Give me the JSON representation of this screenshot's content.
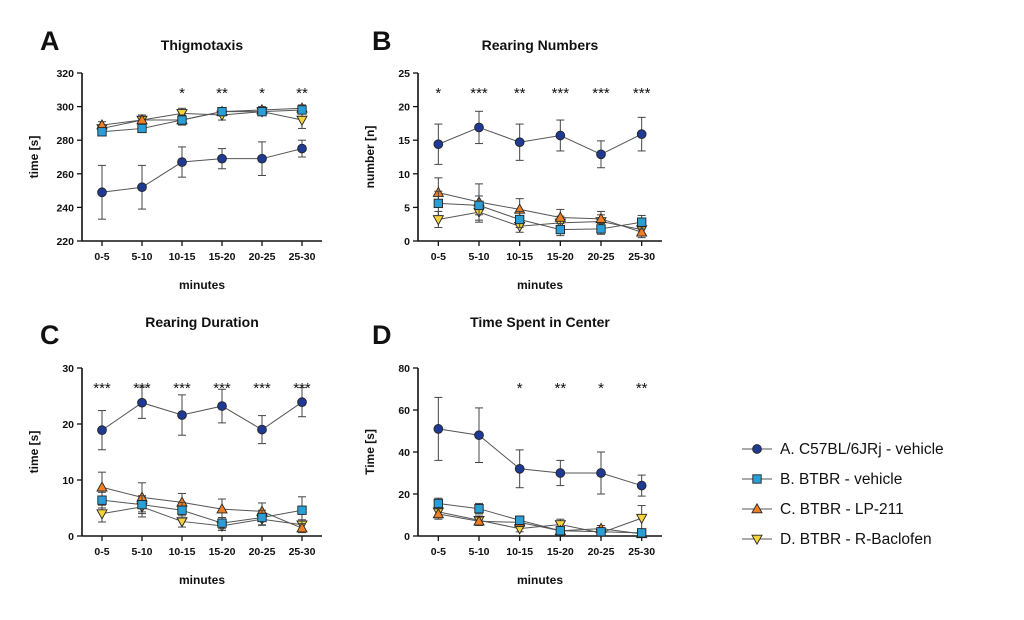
{
  "legend": [
    {
      "name": "A. C57BL/6JRj - vehicle",
      "color": "#1f3a93",
      "marker": "circle"
    },
    {
      "name": "B. BTBR - vehicle",
      "color": "#2a9fd6",
      "marker": "square"
    },
    {
      "name": "C. BTBR - LP-211",
      "color": "#f07f22",
      "marker": "triangle-up"
    },
    {
      "name": "D. BTBR - R-Baclofen",
      "color": "#f5d33a",
      "marker": "triangle-down"
    }
  ],
  "chart_data": [
    {
      "panel": "A",
      "type": "line",
      "title": "Thigmotaxis",
      "xlabel": "minutes",
      "ylabel": "time [s]",
      "categories": [
        "0-5",
        "5-10",
        "10-15",
        "15-20",
        "20-25",
        "25-30"
      ],
      "ylim": [
        220,
        320
      ],
      "yticks": [
        220,
        240,
        260,
        280,
        300,
        320
      ],
      "significance": [
        "",
        "",
        "*",
        "**",
        "*",
        "**"
      ],
      "series": [
        {
          "name": "A. C57BL/6JRj - vehicle",
          "values": [
            249,
            252,
            267,
            269,
            269,
            275
          ],
          "errors": [
            16,
            13,
            9,
            6,
            10,
            5
          ]
        },
        {
          "name": "B. BTBR - vehicle",
          "values": [
            285,
            287,
            292,
            297,
            297,
            298
          ],
          "errors": [
            2,
            2,
            3,
            2,
            2,
            2
          ]
        },
        {
          "name": "C. BTBR - LP-211",
          "values": [
            289,
            292,
            292,
            297,
            298,
            299
          ],
          "errors": [
            2,
            2,
            2,
            2,
            2,
            2
          ]
        },
        {
          "name": "D. BTBR - R-Baclofen",
          "values": [
            287,
            292,
            296,
            295,
            297,
            292
          ],
          "errors": [
            2,
            3,
            3,
            3,
            2,
            5
          ]
        }
      ]
    },
    {
      "panel": "B",
      "type": "line",
      "title": "Rearing Numbers",
      "xlabel": "minutes",
      "ylabel": "number [n]",
      "categories": [
        "0-5",
        "5-10",
        "10-15",
        "15-20",
        "20-25",
        "25-30"
      ],
      "ylim": [
        0,
        25
      ],
      "yticks": [
        0,
        5,
        10,
        15,
        20,
        25
      ],
      "significance": [
        "*",
        "***",
        "**",
        "***",
        "***",
        "***"
      ],
      "series": [
        {
          "name": "A. C57BL/6JRj - vehicle",
          "values": [
            14.4,
            16.9,
            14.7,
            15.7,
            12.9,
            15.9
          ],
          "errors": [
            3.0,
            2.4,
            2.7,
            2.3,
            2.0,
            2.5
          ]
        },
        {
          "name": "B. BTBR - vehicle",
          "values": [
            5.6,
            5.3,
            3.2,
            1.7,
            1.8,
            2.8
          ],
          "errors": [
            1.8,
            1.4,
            1.2,
            0.9,
            0.8,
            1.0
          ]
        },
        {
          "name": "C. BTBR - LP-211",
          "values": [
            7.2,
            5.8,
            4.7,
            3.5,
            3.3,
            1.3
          ],
          "errors": [
            2.2,
            2.7,
            1.6,
            1.2,
            1.1,
            0.8
          ]
        },
        {
          "name": "D. BTBR - R-Baclofen",
          "values": [
            3.2,
            4.3,
            2.2,
            2.7,
            2.9,
            1.7
          ],
          "errors": [
            1.2,
            1.5,
            0.9,
            1.0,
            1.0,
            0.7
          ]
        }
      ]
    },
    {
      "panel": "C",
      "type": "line",
      "title": "Rearing Duration",
      "xlabel": "minutes",
      "ylabel": "time [s]",
      "categories": [
        "0-5",
        "5-10",
        "10-15",
        "15-20",
        "20-25",
        "25-30"
      ],
      "ylim": [
        0,
        30
      ],
      "yticks": [
        0,
        10,
        20,
        30
      ],
      "significance": [
        "***",
        "***",
        "***",
        "***",
        "***",
        "***"
      ],
      "series": [
        {
          "name": "A. C57BL/6JRj - vehicle",
          "values": [
            18.9,
            23.8,
            21.6,
            23.2,
            19.0,
            23.9
          ],
          "errors": [
            3.5,
            2.8,
            3.6,
            3.0,
            2.5,
            2.6
          ]
        },
        {
          "name": "B. BTBR - vehicle",
          "values": [
            6.4,
            5.6,
            4.6,
            2.3,
            3.3,
            4.6
          ],
          "errors": [
            1.4,
            1.6,
            1.4,
            1.0,
            1.3,
            2.4
          ]
        },
        {
          "name": "C. BTBR - LP-211",
          "values": [
            8.7,
            6.9,
            6.0,
            4.8,
            4.4,
            1.4
          ],
          "errors": [
            2.7,
            2.6,
            1.6,
            1.8,
            1.5,
            0.8
          ]
        },
        {
          "name": "D. BTBR - R-Baclofen",
          "values": [
            4.0,
            5.2,
            2.6,
            1.8,
            3.0,
            2.0
          ],
          "errors": [
            1.5,
            1.8,
            1.0,
            0.8,
            1.1,
            0.9
          ]
        }
      ]
    },
    {
      "panel": "D",
      "type": "line",
      "title": "Time Spent in Center",
      "xlabel": "minutes",
      "ylabel": "Time [s]",
      "categories": [
        "0-5",
        "5-10",
        "10-15",
        "15-20",
        "20-25",
        "25-30"
      ],
      "ylim": [
        0,
        80
      ],
      "yticks": [
        0,
        20,
        40,
        60,
        80
      ],
      "significance": [
        "",
        "",
        "*",
        "**",
        "*",
        "**"
      ],
      "series": [
        {
          "name": "A. C57BL/6JRj - vehicle",
          "values": [
            51,
            48,
            32,
            30,
            30,
            24
          ],
          "errors": [
            15,
            13,
            9,
            6,
            10,
            5
          ]
        },
        {
          "name": "B. BTBR - vehicle",
          "values": [
            15.5,
            13,
            7.5,
            2.5,
            2,
            1.5
          ],
          "errors": [
            2.5,
            2.5,
            2,
            1.2,
            1,
            1
          ]
        },
        {
          "name": "C. BTBR - LP-211",
          "values": [
            10.5,
            7,
            6.5,
            2.5,
            3.5,
            1
          ],
          "errors": [
            2.5,
            2,
            2,
            1.5,
            1.5,
            0.8
          ]
        },
        {
          "name": "D. BTBR - R-Baclofen",
          "values": [
            11.5,
            7.5,
            3.5,
            5.5,
            1.5,
            8.5
          ],
          "errors": [
            2.5,
            2,
            1.5,
            2.5,
            1,
            6
          ]
        }
      ]
    }
  ]
}
